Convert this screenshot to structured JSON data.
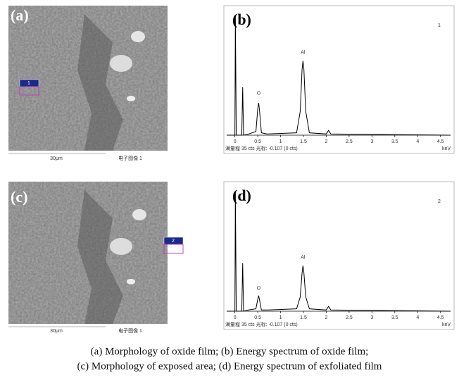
{
  "panels": [
    {
      "label": "(a)",
      "region_label": "1",
      "scale_bar": "30μm",
      "image_label": "电子图像 1"
    },
    {
      "label": "(c)",
      "region_label": "2",
      "scale_bar": "30μm",
      "image_label": "电子图像 1"
    }
  ],
  "chart_data": [
    {
      "type": "line",
      "label": "(b)",
      "spectrum_id": "1",
      "color": "#000000",
      "x": [
        -0.18,
        0.0,
        0.01,
        0.03,
        0.15,
        0.17,
        0.19,
        0.3,
        0.46,
        0.5,
        0.52,
        0.54,
        0.58,
        0.7,
        1.35,
        1.43,
        1.47,
        1.49,
        1.51,
        1.55,
        1.63,
        2.0,
        2.05,
        2.1,
        4.72
      ],
      "values": [
        0,
        0,
        100,
        0,
        0,
        40,
        0,
        1,
        3,
        22,
        27,
        20,
        2,
        1,
        2,
        20,
        55,
        62,
        55,
        20,
        2,
        1,
        4,
        1,
        0
      ],
      "xlim": [
        -0.18,
        4.72
      ],
      "ylim": [
        0,
        100
      ],
      "xticks": [
        0,
        0.5,
        1,
        1.5,
        2,
        2.5,
        3,
        3.5,
        4,
        4.5
      ],
      "annotations": [
        {
          "text": "O",
          "x": 0.52,
          "y": 35
        },
        {
          "text": "Al",
          "x": 1.49,
          "y": 69
        }
      ],
      "footer": "满量程 35 cts 光标: -0.107 (0 cts)",
      "x_unit": "keV"
    },
    {
      "type": "line",
      "label": "(d)",
      "spectrum_id": "2",
      "color": "#000000",
      "x": [
        -0.18,
        0.0,
        0.01,
        0.03,
        0.15,
        0.17,
        0.19,
        0.3,
        0.46,
        0.5,
        0.52,
        0.54,
        0.58,
        0.7,
        1.35,
        1.43,
        1.47,
        1.49,
        1.51,
        1.55,
        1.63,
        2.0,
        2.05,
        2.1,
        4.72
      ],
      "values": [
        0,
        0,
        100,
        0,
        0,
        40,
        0,
        1,
        2,
        10,
        13,
        9,
        1,
        1,
        2,
        12,
        32,
        38,
        32,
        12,
        2,
        1,
        4,
        1,
        0
      ],
      "xlim": [
        -0.18,
        4.72
      ],
      "ylim": [
        0,
        100
      ],
      "xticks": [
        0,
        0.5,
        1,
        1.5,
        2,
        2.5,
        3,
        3.5,
        4,
        4.5
      ],
      "annotations": [
        {
          "text": "O",
          "x": 0.52,
          "y": 19
        },
        {
          "text": "Al",
          "x": 1.49,
          "y": 45
        }
      ],
      "footer": "满量程 35 cts 光标: -0.107 (0 cts)",
      "x_unit": "keV"
    }
  ],
  "caption": [
    "(a) Morphology of oxide film; (b) Energy spectrum of oxide film;",
    "(c) Morphology of exposed area; (d) Energy spectrum of exfoliated film"
  ]
}
